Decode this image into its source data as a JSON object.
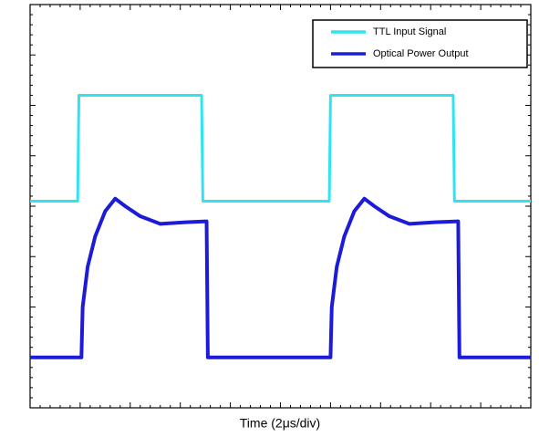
{
  "chart_data": {
    "type": "line",
    "x_label": "Time (2μs/div)",
    "xlim": [
      0,
      20
    ],
    "xticks": [
      0,
      2,
      4,
      6,
      8,
      10,
      12,
      14,
      16,
      18,
      20
    ],
    "ylim": [
      0,
      8
    ],
    "yticks": [
      0,
      1,
      2,
      3,
      4,
      5,
      6,
      7,
      8
    ],
    "minor_ticks_per_division": 5,
    "legend": "upper right",
    "series": [
      {
        "name": "TTL Input Signal",
        "color": "#2fe4f2",
        "x": [
          0,
          1.9,
          1.95,
          6.85,
          6.9,
          11.95,
          12.0,
          16.9,
          16.95,
          20
        ],
        "values": [
          4.1,
          4.1,
          6.2,
          6.2,
          4.1,
          4.1,
          6.2,
          6.2,
          4.1,
          4.1
        ]
      },
      {
        "name": "Optical Power Output",
        "color": "#1c1cd8",
        "x": [
          0,
          2.05,
          2.1,
          2.3,
          2.6,
          3.0,
          3.4,
          3.8,
          4.4,
          5.2,
          6.2,
          7.05,
          7.1,
          12.0,
          12.05,
          12.25,
          12.55,
          12.95,
          13.35,
          13.75,
          14.35,
          15.15,
          16.15,
          17.1,
          17.15,
          20
        ],
        "values": [
          1.0,
          1.0,
          2.0,
          2.8,
          3.4,
          3.9,
          4.15,
          4.0,
          3.8,
          3.65,
          3.68,
          3.7,
          1.0,
          1.0,
          2.0,
          2.8,
          3.4,
          3.9,
          4.15,
          4.0,
          3.8,
          3.65,
          3.68,
          3.7,
          1.0,
          1.0
        ]
      }
    ]
  }
}
